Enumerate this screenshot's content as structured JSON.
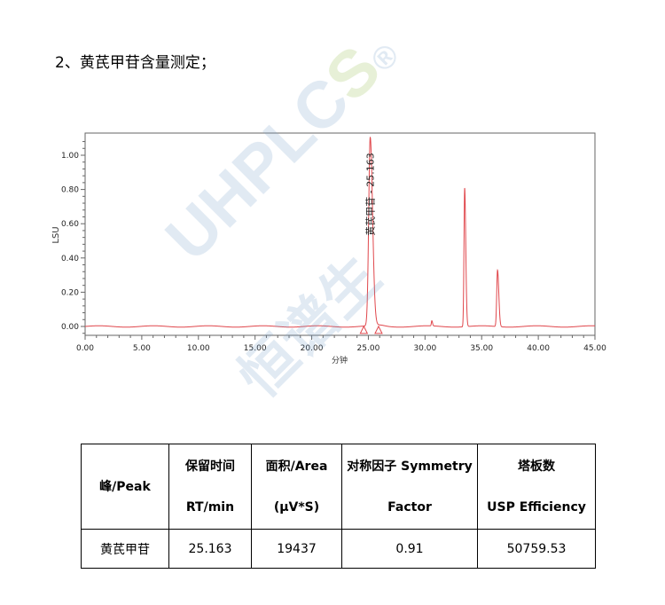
{
  "heading": "2、黄芪甲苷含量测定；",
  "watermark": {
    "latin": "UHPLC",
    "s": "S",
    "reg": "®",
    "cjk": "恒谱生"
  },
  "chart_data": {
    "type": "line",
    "xlabel": "分钟",
    "ylabel": "LSU",
    "xlim": [
      0,
      45
    ],
    "ylim": [
      -0.05,
      1.13
    ],
    "xticks": [
      "0.00",
      "5.00",
      "10.00",
      "15.00",
      "20.00",
      "25.00",
      "30.00",
      "35.00",
      "40.00",
      "45.00"
    ],
    "yticks": [
      "0.00",
      "0.20",
      "0.40",
      "0.60",
      "0.80",
      "1.00"
    ],
    "grid": false,
    "line_color": "#e0474c",
    "peaks": [
      {
        "rt": 25.163,
        "height": 1.1,
        "width": 0.13
      },
      {
        "rt": 30.6,
        "height": 0.03,
        "width": 0.04
      },
      {
        "rt": 33.5,
        "height": 0.81,
        "width": 0.06
      },
      {
        "rt": 36.4,
        "height": 0.33,
        "width": 0.07
      }
    ],
    "baseline": 0.0,
    "annotation": "黄芪甲苷 - 25.163",
    "integration_marks": [
      24.6,
      25.9
    ]
  },
  "table": {
    "headers": [
      [
        "峰/Peak"
      ],
      [
        "保留时间",
        "RT/min"
      ],
      [
        "面积/Area",
        "(μV*S)"
      ],
      [
        "对称因子 Symmetry",
        "Factor"
      ],
      [
        "塔板数",
        "USP Efficiency"
      ]
    ],
    "rows": [
      [
        "黄芪甲苷",
        "25.163",
        "19437",
        "0.91",
        "50759.53"
      ]
    ]
  }
}
